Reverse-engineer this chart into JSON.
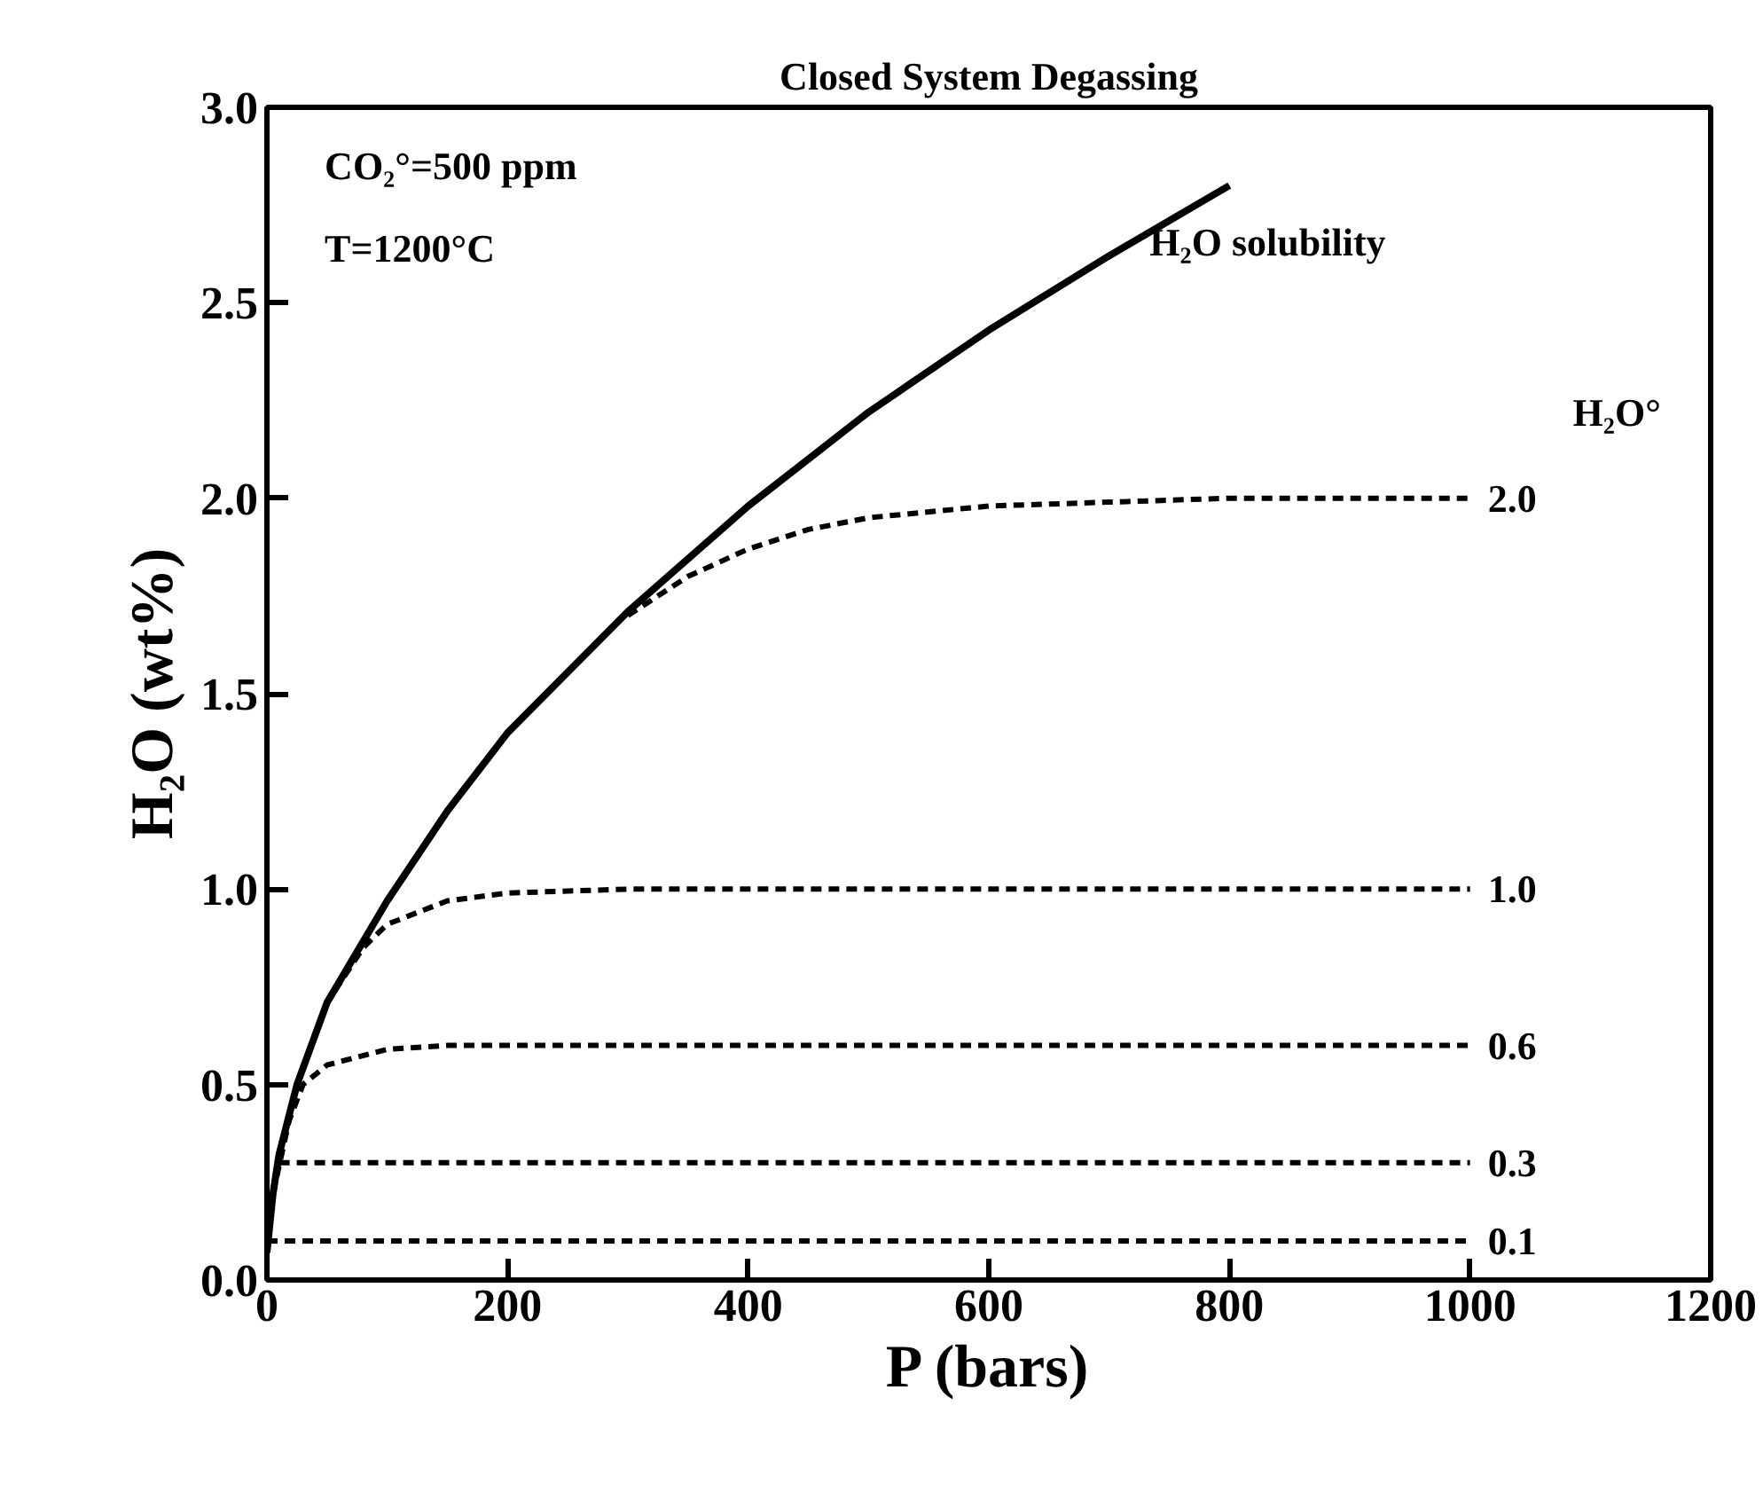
{
  "chart_data": {
    "type": "line",
    "title": "Closed System Degassing",
    "xlabel": "P (bars)",
    "ylabel": "H₂O (wt%)",
    "xlim": [
      0,
      1200
    ],
    "ylim": [
      0,
      3
    ],
    "xticks": [
      0,
      200,
      400,
      600,
      800,
      1000,
      1200
    ],
    "yticks": [
      {
        "value": 0,
        "label": "0.0"
      },
      {
        "value": 0.5,
        "label": "0.5"
      },
      {
        "value": 1,
        "label": "1.0"
      },
      {
        "value": 1.5,
        "label": "1.5"
      },
      {
        "value": 2,
        "label": "2.0"
      },
      {
        "value": 2.5,
        "label": "2.5"
      },
      {
        "value": 3,
        "label": "3.0"
      }
    ],
    "grid": false,
    "legend": false,
    "marker": "none",
    "annotations": [
      {
        "text": "CO₂°=500 ppm"
      },
      {
        "text": "T=1200°C"
      },
      {
        "text": "H₂O°"
      }
    ],
    "series": [
      {
        "name": "H₂O solubility",
        "color": "#000000",
        "line_style": "solid",
        "x": [
          0,
          5,
          10,
          25,
          50,
          100,
          150,
          200,
          300,
          400,
          500,
          600,
          700,
          800
        ],
        "values": [
          0.07,
          0.22,
          0.32,
          0.5,
          0.71,
          0.97,
          1.2,
          1.4,
          1.71,
          1.98,
          2.22,
          2.43,
          2.62,
          2.8
        ]
      },
      {
        "name": "2.0",
        "color": "#000000",
        "line_style": "dashed",
        "x": [
          300,
          350,
          400,
          450,
          500,
          600,
          700,
          800,
          1000
        ],
        "values": [
          1.7,
          1.8,
          1.87,
          1.92,
          1.95,
          1.98,
          1.99,
          2.0,
          2.0
        ]
      },
      {
        "name": "1.0",
        "color": "#000000",
        "line_style": "dashed",
        "x": [
          5,
          25,
          50,
          80,
          100,
          150,
          200,
          300,
          1000
        ],
        "values": [
          0.22,
          0.5,
          0.71,
          0.85,
          0.91,
          0.97,
          0.99,
          1.0,
          1.0
        ]
      },
      {
        "name": "0.6",
        "color": "#000000",
        "line_style": "dashed",
        "x": [
          5,
          15,
          30,
          50,
          100,
          150,
          300,
          1000
        ],
        "values": [
          0.22,
          0.38,
          0.5,
          0.55,
          0.59,
          0.6,
          0.6,
          0.6
        ]
      },
      {
        "name": "0.3",
        "color": "#000000",
        "line_style": "dashed",
        "x": [
          10,
          30,
          1000
        ],
        "values": [
          0.3,
          0.3,
          0.3
        ]
      },
      {
        "name": "0.1",
        "color": "#000000",
        "line_style": "dashed",
        "x": [
          0,
          1000
        ],
        "values": [
          0.1,
          0.1
        ]
      }
    ]
  }
}
